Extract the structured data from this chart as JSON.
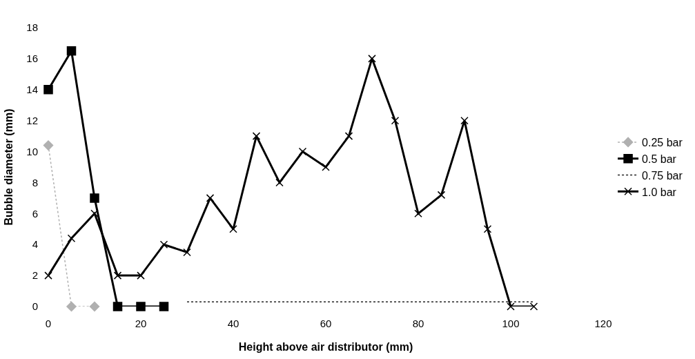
{
  "chart_data": {
    "type": "line",
    "xlabel": "Height above air distributor (mm)",
    "ylabel": "Bubble diameter (mm)",
    "xlim": [
      0,
      120
    ],
    "xticks": [
      0,
      20,
      40,
      60,
      80,
      100,
      120
    ],
    "ylim": [
      0,
      18
    ],
    "yticks": [
      0,
      2,
      4,
      6,
      8,
      10,
      12,
      14,
      16,
      18
    ],
    "legend": "right",
    "series": [
      {
        "name": "0.25 bar",
        "color": "#b0b0b0",
        "line_style": "dotted",
        "marker": "diamond",
        "x": [
          0,
          5,
          10
        ],
        "values": [
          10.4,
          0,
          0
        ]
      },
      {
        "name": "0.5 bar",
        "color": "#000000",
        "line_style": "solid",
        "marker": "square",
        "x": [
          0,
          5,
          10,
          15,
          20,
          25
        ],
        "values": [
          14,
          16.5,
          7,
          0,
          0,
          0
        ]
      },
      {
        "name": "0.75 bar",
        "color": "#222222",
        "line_style": "dotted",
        "marker": "none",
        "x": [
          30,
          35,
          40,
          45,
          50,
          55,
          60,
          65,
          70,
          75,
          80,
          85,
          90,
          95,
          100,
          105
        ],
        "values": [
          0.3,
          0.3,
          0.3,
          0.3,
          0.3,
          0.3,
          0.3,
          0.3,
          0.3,
          0.3,
          0.3,
          0.3,
          0.3,
          0.3,
          0.3,
          0.3
        ]
      },
      {
        "name": "1.0 bar",
        "color": "#000000",
        "line_style": "solid",
        "marker": "cross",
        "x": [
          0,
          5,
          10,
          15,
          20,
          25,
          30,
          35,
          40,
          45,
          50,
          55,
          60,
          65,
          70,
          75,
          80,
          85,
          90,
          95,
          100,
          105
        ],
        "values": [
          2,
          4.4,
          6,
          2,
          2,
          4,
          3.5,
          7,
          5,
          11,
          8,
          10,
          9,
          11,
          16,
          12,
          6,
          7.2,
          12,
          5,
          0,
          0
        ]
      }
    ]
  }
}
